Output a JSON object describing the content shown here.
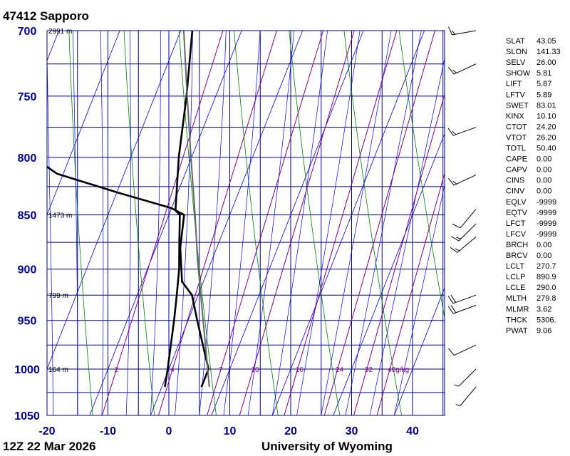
{
  "header": {
    "station": "47412  Sapporo"
  },
  "footer": {
    "time": "12Z 22 Mar 2026",
    "source": "University of Wyoming"
  },
  "chart_data": {
    "type": "line",
    "title": "47412  Sapporo",
    "xlabel": "",
    "ylabel": "",
    "xlim": [
      -20,
      45
    ],
    "ylim": [
      1050,
      700
    ],
    "y_scale": "log",
    "grid": true,
    "pressure_ticks": [
      "700",
      "750",
      "800",
      "850",
      "900",
      "950",
      "1000",
      "1050"
    ],
    "temperature_ticks": [
      "-20",
      "-10",
      "0",
      "10",
      "20",
      "30",
      "40"
    ],
    "height_labels": [
      {
        "p": 700,
        "label": "2991 m"
      },
      {
        "p": 850,
        "label": "1473 m"
      },
      {
        "p": 925,
        "label": "799 m"
      },
      {
        "p": 1000,
        "label": "164 m"
      }
    ],
    "mixing_ratio_labels": [
      {
        "w": 2,
        "label": "2"
      },
      {
        "w": 4,
        "label": "4"
      },
      {
        "w": 7,
        "label": "7"
      },
      {
        "w": 10,
        "label": "10"
      },
      {
        "w": 16,
        "label": "16"
      },
      {
        "w": 24,
        "label": "24"
      },
      {
        "w": 32,
        "label": "32"
      },
      {
        "w": 40,
        "label": "40g/kg"
      }
    ],
    "series": [
      {
        "points": [
          {
            "p": 1019,
            "t": 0.5
          },
          {
            "p": 1000,
            "t": -0.2
          },
          {
            "p": 950,
            "t": -2.3
          },
          {
            "p": 925,
            "t": -3.5
          },
          {
            "p": 900,
            "t": -4.8
          },
          {
            "p": 875,
            "t": -6.5
          },
          {
            "p": 850,
            "t": -8.2
          },
          {
            "p": 846,
            "t": -9.2
          },
          {
            "p": 800,
            "t": -12.1
          },
          {
            "p": 750,
            "t": -14.8
          },
          {
            "p": 700,
            "t": -18.1
          }
        ]
      },
      {
        "points": [
          {
            "p": 1019,
            "t": 6.5
          },
          {
            "p": 1000,
            "t": 6.5
          },
          {
            "p": 950,
            "t": 1.5
          },
          {
            "p": 925,
            "t": -1.0
          },
          {
            "p": 912,
            "t": -3.5
          },
          {
            "p": 880,
            "t": -6.0
          },
          {
            "p": 850,
            "t": -7.5
          },
          {
            "p": 844,
            "t": -10.0
          },
          {
            "p": 830,
            "t": -20.0
          },
          {
            "p": 814,
            "t": -31.0
          },
          {
            "p": 800,
            "t": -36.0
          }
        ]
      },
      {
        "points": [
          {
            "p": 1019,
            "t": 7.8
          },
          {
            "p": 891,
            "t": -2.4
          },
          {
            "p": 850,
            "t": -5.7
          },
          {
            "p": 800,
            "t": -10.1
          },
          {
            "p": 750,
            "t": -14.7
          },
          {
            "p": 700,
            "t": -19.5
          }
        ]
      }
    ],
    "wind_barbs": [
      {
        "p": 1019,
        "dir": 220,
        "kt": 5
      },
      {
        "p": 1000,
        "dir": 225,
        "kt": 5
      },
      {
        "p": 975,
        "dir": 245,
        "kt": 10
      },
      {
        "p": 935,
        "dir": 250,
        "kt": 20
      },
      {
        "p": 925,
        "dir": 250,
        "kt": 20
      },
      {
        "p": 870,
        "dir": 230,
        "kt": 15
      },
      {
        "p": 858,
        "dir": 225,
        "kt": 15
      },
      {
        "p": 845,
        "dir": 220,
        "kt": 10
      },
      {
        "p": 815,
        "dir": 245,
        "kt": 15
      },
      {
        "p": 775,
        "dir": 250,
        "kt": 15
      },
      {
        "p": 725,
        "dir": 245,
        "kt": 15
      },
      {
        "p": 700,
        "dir": 260,
        "kt": 15
      }
    ]
  },
  "indices": [
    {
      "name": "SLAT",
      "value": "43.05"
    },
    {
      "name": "SLON",
      "value": "141.33"
    },
    {
      "name": "SELV",
      "value": "26.00"
    },
    {
      "name": "SHOW",
      "value": "5.81"
    },
    {
      "name": "LIFT",
      "value": "5.87"
    },
    {
      "name": "LFTV",
      "value": "5.89"
    },
    {
      "name": "SWET",
      "value": "83.01"
    },
    {
      "name": "KINX",
      "value": "10.10"
    },
    {
      "name": "CTOT",
      "value": "24.20"
    },
    {
      "name": "VTOT",
      "value": "26.20"
    },
    {
      "name": "TOTL",
      "value": "50.40"
    },
    {
      "name": "CAPE",
      "value": "0.00"
    },
    {
      "name": "CAPV",
      "value": "0.00"
    },
    {
      "name": "CINS",
      "value": "0.00"
    },
    {
      "name": "CINV",
      "value": "0.00"
    },
    {
      "name": "EQLV",
      "value": "-9999"
    },
    {
      "name": "EQTV",
      "value": "-9999"
    },
    {
      "name": "LFCT",
      "value": "-9999"
    },
    {
      "name": "LFCV",
      "value": "-9999"
    },
    {
      "name": "BRCH",
      "value": "0.00"
    },
    {
      "name": "BRCV",
      "value": "0.00"
    },
    {
      "name": "LCLT",
      "value": "270.7"
    },
    {
      "name": "LCLP",
      "value": "890.9"
    },
    {
      "name": "LCLE",
      "value": "290.0"
    },
    {
      "name": "MLTH",
      "value": "279.8"
    },
    {
      "name": "MLMR",
      "value": "3.62"
    },
    {
      "name": "THCK",
      "value": "5306."
    },
    {
      "name": "PWAT",
      "value": "9.06"
    }
  ],
  "colors": {
    "grid": "#00008b",
    "isotherm": "#0000cd",
    "dry_adiabat": "#008000",
    "moist_adiabat": "#0000ff",
    "mixing_ratio": "#800080",
    "profile": "#000000",
    "parcel": "#666666"
  }
}
